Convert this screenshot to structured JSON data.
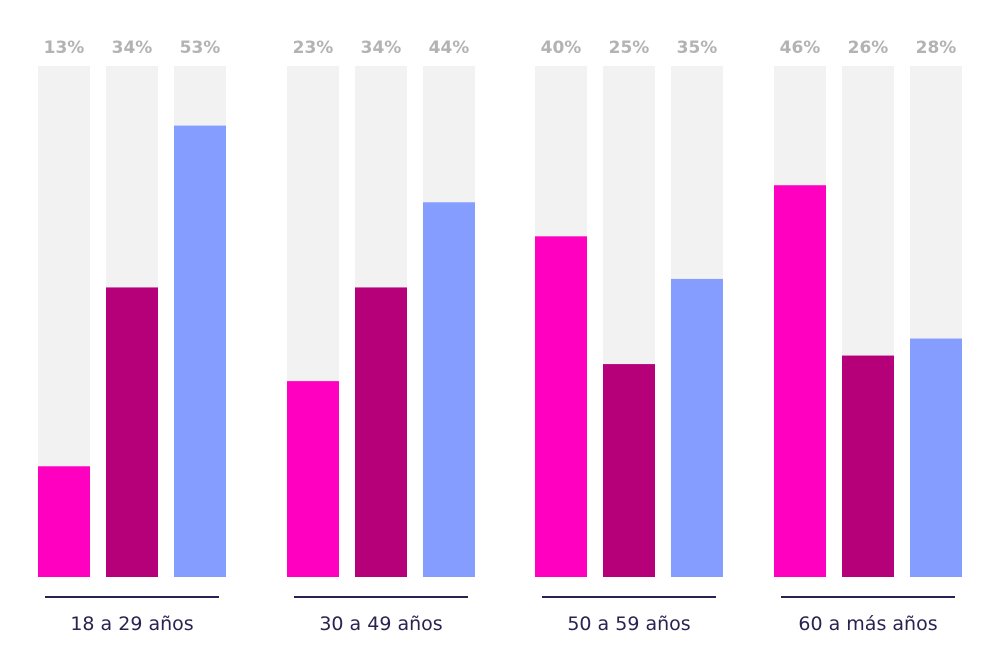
{
  "chart_data": {
    "type": "bar",
    "categories": [
      "18 a 29 años",
      "30 a 49 años",
      "50 a 59 años",
      "60 a más años"
    ],
    "series": [
      {
        "color": "#ff00c0",
        "values": [
          13,
          23,
          40,
          46
        ]
      },
      {
        "color": "#b5007a",
        "values": [
          34,
          34,
          25,
          26
        ]
      },
      {
        "color": "#859dff",
        "values": [
          53,
          44,
          35,
          28
        ]
      }
    ],
    "value_labels": [
      [
        "13%",
        "34%",
        "53%"
      ],
      [
        "23%",
        "34%",
        "44%"
      ],
      [
        "40%",
        "25%",
        "35%"
      ],
      [
        "46%",
        "26%",
        "28%"
      ]
    ],
    "ylim": [
      0,
      60
    ],
    "track_color": "#f2f2f2",
    "label_color": "#b3b3b3",
    "axis_line_color": "#2a2250",
    "grid": false,
    "legend": "none"
  }
}
